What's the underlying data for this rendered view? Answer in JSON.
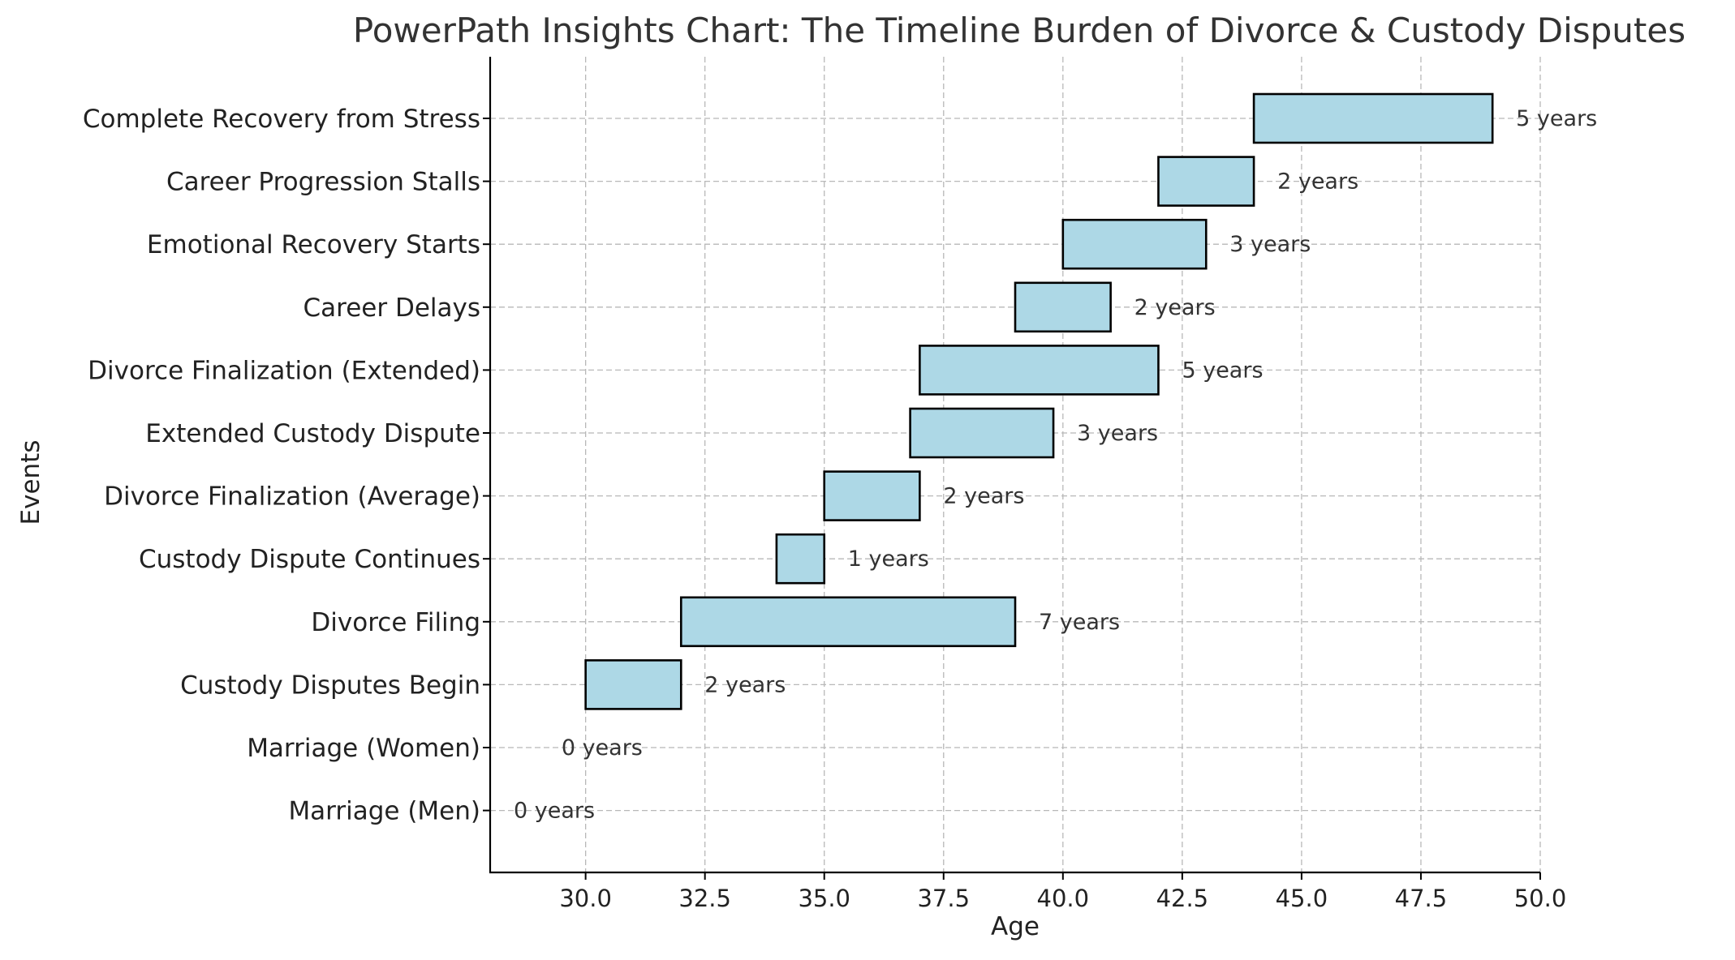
{
  "chart_data": {
    "type": "bar",
    "orientation": "horizontal",
    "title": "PowerPath Insights Chart: The Timeline Burden of Divorce & Custody Disputes",
    "xlabel": "Age",
    "ylabel": "Events",
    "xlim": [
      28,
      50
    ],
    "xticks": [
      "30.0",
      "32.5",
      "35.0",
      "37.5",
      "40.0",
      "42.5",
      "45.0",
      "47.5",
      "50.0"
    ],
    "xtick_values": [
      30,
      32.5,
      35,
      37.5,
      40,
      42.5,
      45,
      47.5,
      50
    ],
    "grid": true,
    "bar_color": "#add8e6",
    "edge_color": "#000000",
    "categories": [
      "Marriage (Men)",
      "Marriage (Women)",
      "Custody Disputes Begin",
      "Divorce Filing",
      "Custody Dispute Continues",
      "Divorce Finalization (Average)",
      "Extended Custody Dispute",
      "Divorce Finalization (Extended)",
      "Career Delays",
      "Emotional Recovery Starts",
      "Career Progression Stalls",
      "Complete Recovery from Stress"
    ],
    "start": [
      28,
      29,
      30,
      32,
      34,
      35,
      36.8,
      37,
      39,
      40,
      42,
      44
    ],
    "duration": [
      0,
      0,
      2,
      7,
      1,
      2,
      3,
      5,
      2,
      3,
      2,
      5
    ],
    "data_labels": [
      "0 years",
      "0 years",
      "2 years",
      "7 years",
      "1 years",
      "2 years",
      "3 years",
      "5 years",
      "2 years",
      "3 years",
      "2 years",
      "5 years"
    ]
  }
}
